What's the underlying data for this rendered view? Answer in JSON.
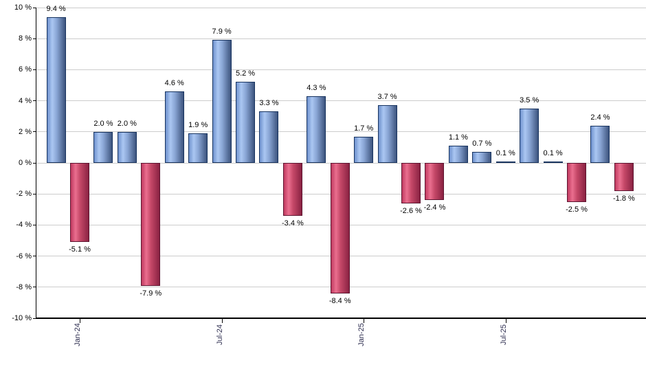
{
  "chart_data": {
    "type": "bar",
    "title": "",
    "xlabel": "",
    "ylabel": "",
    "legend": "none",
    "grid": "horizontal",
    "values": [
      9.4,
      -5.1,
      2.0,
      2.0,
      -7.9,
      4.6,
      1.9,
      7.9,
      5.2,
      3.3,
      -3.4,
      4.3,
      -8.4,
      1.7,
      3.7,
      -2.6,
      -2.4,
      1.1,
      0.7,
      0.1,
      3.5,
      0.1,
      -2.5,
      2.4,
      -1.8
    ],
    "value_labels": [
      "9.4 %",
      "-5.1 %",
      "2.0 %",
      "2.0 %",
      "-7.9 %",
      "4.6 %",
      "1.9 %",
      "7.9 %",
      "5.2 %",
      "3.3 %",
      "-3.4 %",
      "4.3 %",
      "-8.4 %",
      "1.7 %",
      "3.7 %",
      "-2.6 %",
      "-2.4 %",
      "1.1 %",
      "0.7 %",
      "0.1 %",
      "3.5 %",
      "0.1 %",
      "-2.5 %",
      "2.4 %",
      "-1.8 %"
    ],
    "x_ticks": [
      {
        "label": "Jan-24",
        "bar_index": 1
      },
      {
        "label": "Jul-24",
        "bar_index": 7
      },
      {
        "label": "Jan-25",
        "bar_index": 13
      },
      {
        "label": "Jul-25",
        "bar_index": 19
      }
    ],
    "y_axis": {
      "min": -10,
      "max": 10,
      "step": 2,
      "tick_labels": [
        "10 %",
        "8 %",
        "6 %",
        "4 %",
        "2 %",
        "0 %",
        "-2 %",
        "-4 %",
        "-6 %",
        "-8 %",
        "-10 %"
      ]
    },
    "ylim": [
      -10,
      10
    ],
    "colors": {
      "positive_bar_border": "#17335f",
      "positive_bar_fill": [
        "#6e91cd",
        "#abc7f2",
        "#8aa6d5",
        "#3d547e"
      ],
      "negative_bar_border": "#5e1430",
      "negative_bar_fill": [
        "#c03a60",
        "#ea6f8f",
        "#c54868",
        "#8a2242"
      ],
      "gridline": "#cccccc",
      "axis": "#000000",
      "value_label": "#000000",
      "x_tick_label": "#2e2e50"
    }
  }
}
